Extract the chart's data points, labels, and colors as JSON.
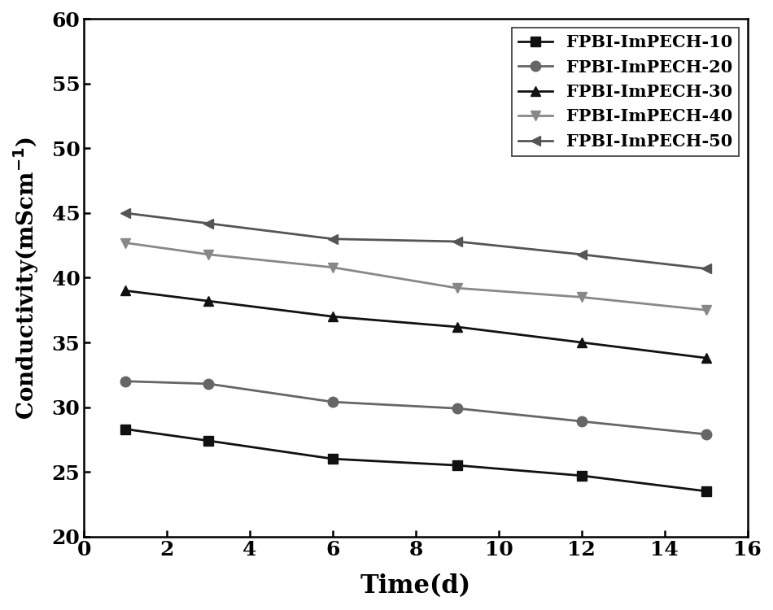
{
  "x": [
    1,
    3,
    6,
    9,
    12,
    15
  ],
  "series": [
    {
      "label": "FPBI-ImPECH-10",
      "y": [
        28.3,
        27.4,
        26.0,
        25.5,
        24.7,
        23.5
      ],
      "color": "#111111",
      "marker": "s",
      "linewidth": 2.0,
      "markersize": 9
    },
    {
      "label": "FPBI-ImPECH-20",
      "y": [
        32.0,
        31.8,
        30.4,
        29.9,
        28.9,
        27.9
      ],
      "color": "#666666",
      "marker": "o",
      "linewidth": 2.0,
      "markersize": 9
    },
    {
      "label": "FPBI-ImPECH-30",
      "y": [
        39.0,
        38.2,
        37.0,
        36.2,
        35.0,
        33.8
      ],
      "color": "#111111",
      "marker": "^",
      "linewidth": 2.0,
      "markersize": 9
    },
    {
      "label": "FPBI-ImPECH-40",
      "y": [
        42.7,
        41.8,
        40.8,
        39.2,
        38.5,
        37.5
      ],
      "color": "#888888",
      "marker": "v",
      "linewidth": 2.0,
      "markersize": 9
    },
    {
      "label": "FPBI-ImPECH-50",
      "y": [
        45.0,
        44.2,
        43.0,
        42.8,
        41.8,
        40.7
      ],
      "color": "#555555",
      "marker": "<",
      "linewidth": 2.0,
      "markersize": 9
    }
  ],
  "xlabel": "Time(d)",
  "ylabel": "Conductivity(mScm$^{-1}$)",
  "xlim": [
    0,
    16
  ],
  "ylim": [
    20,
    60
  ],
  "xticks": [
    0,
    2,
    4,
    6,
    8,
    10,
    12,
    14,
    16
  ],
  "yticks": [
    20,
    25,
    30,
    35,
    40,
    45,
    50,
    55,
    60
  ],
  "xlabel_fontsize": 22,
  "ylabel_fontsize": 20,
  "tick_fontsize": 18,
  "legend_fontsize": 15,
  "background_color": "#ffffff",
  "figure_width": 9.5,
  "figure_height": 7.5,
  "dpi": 100
}
